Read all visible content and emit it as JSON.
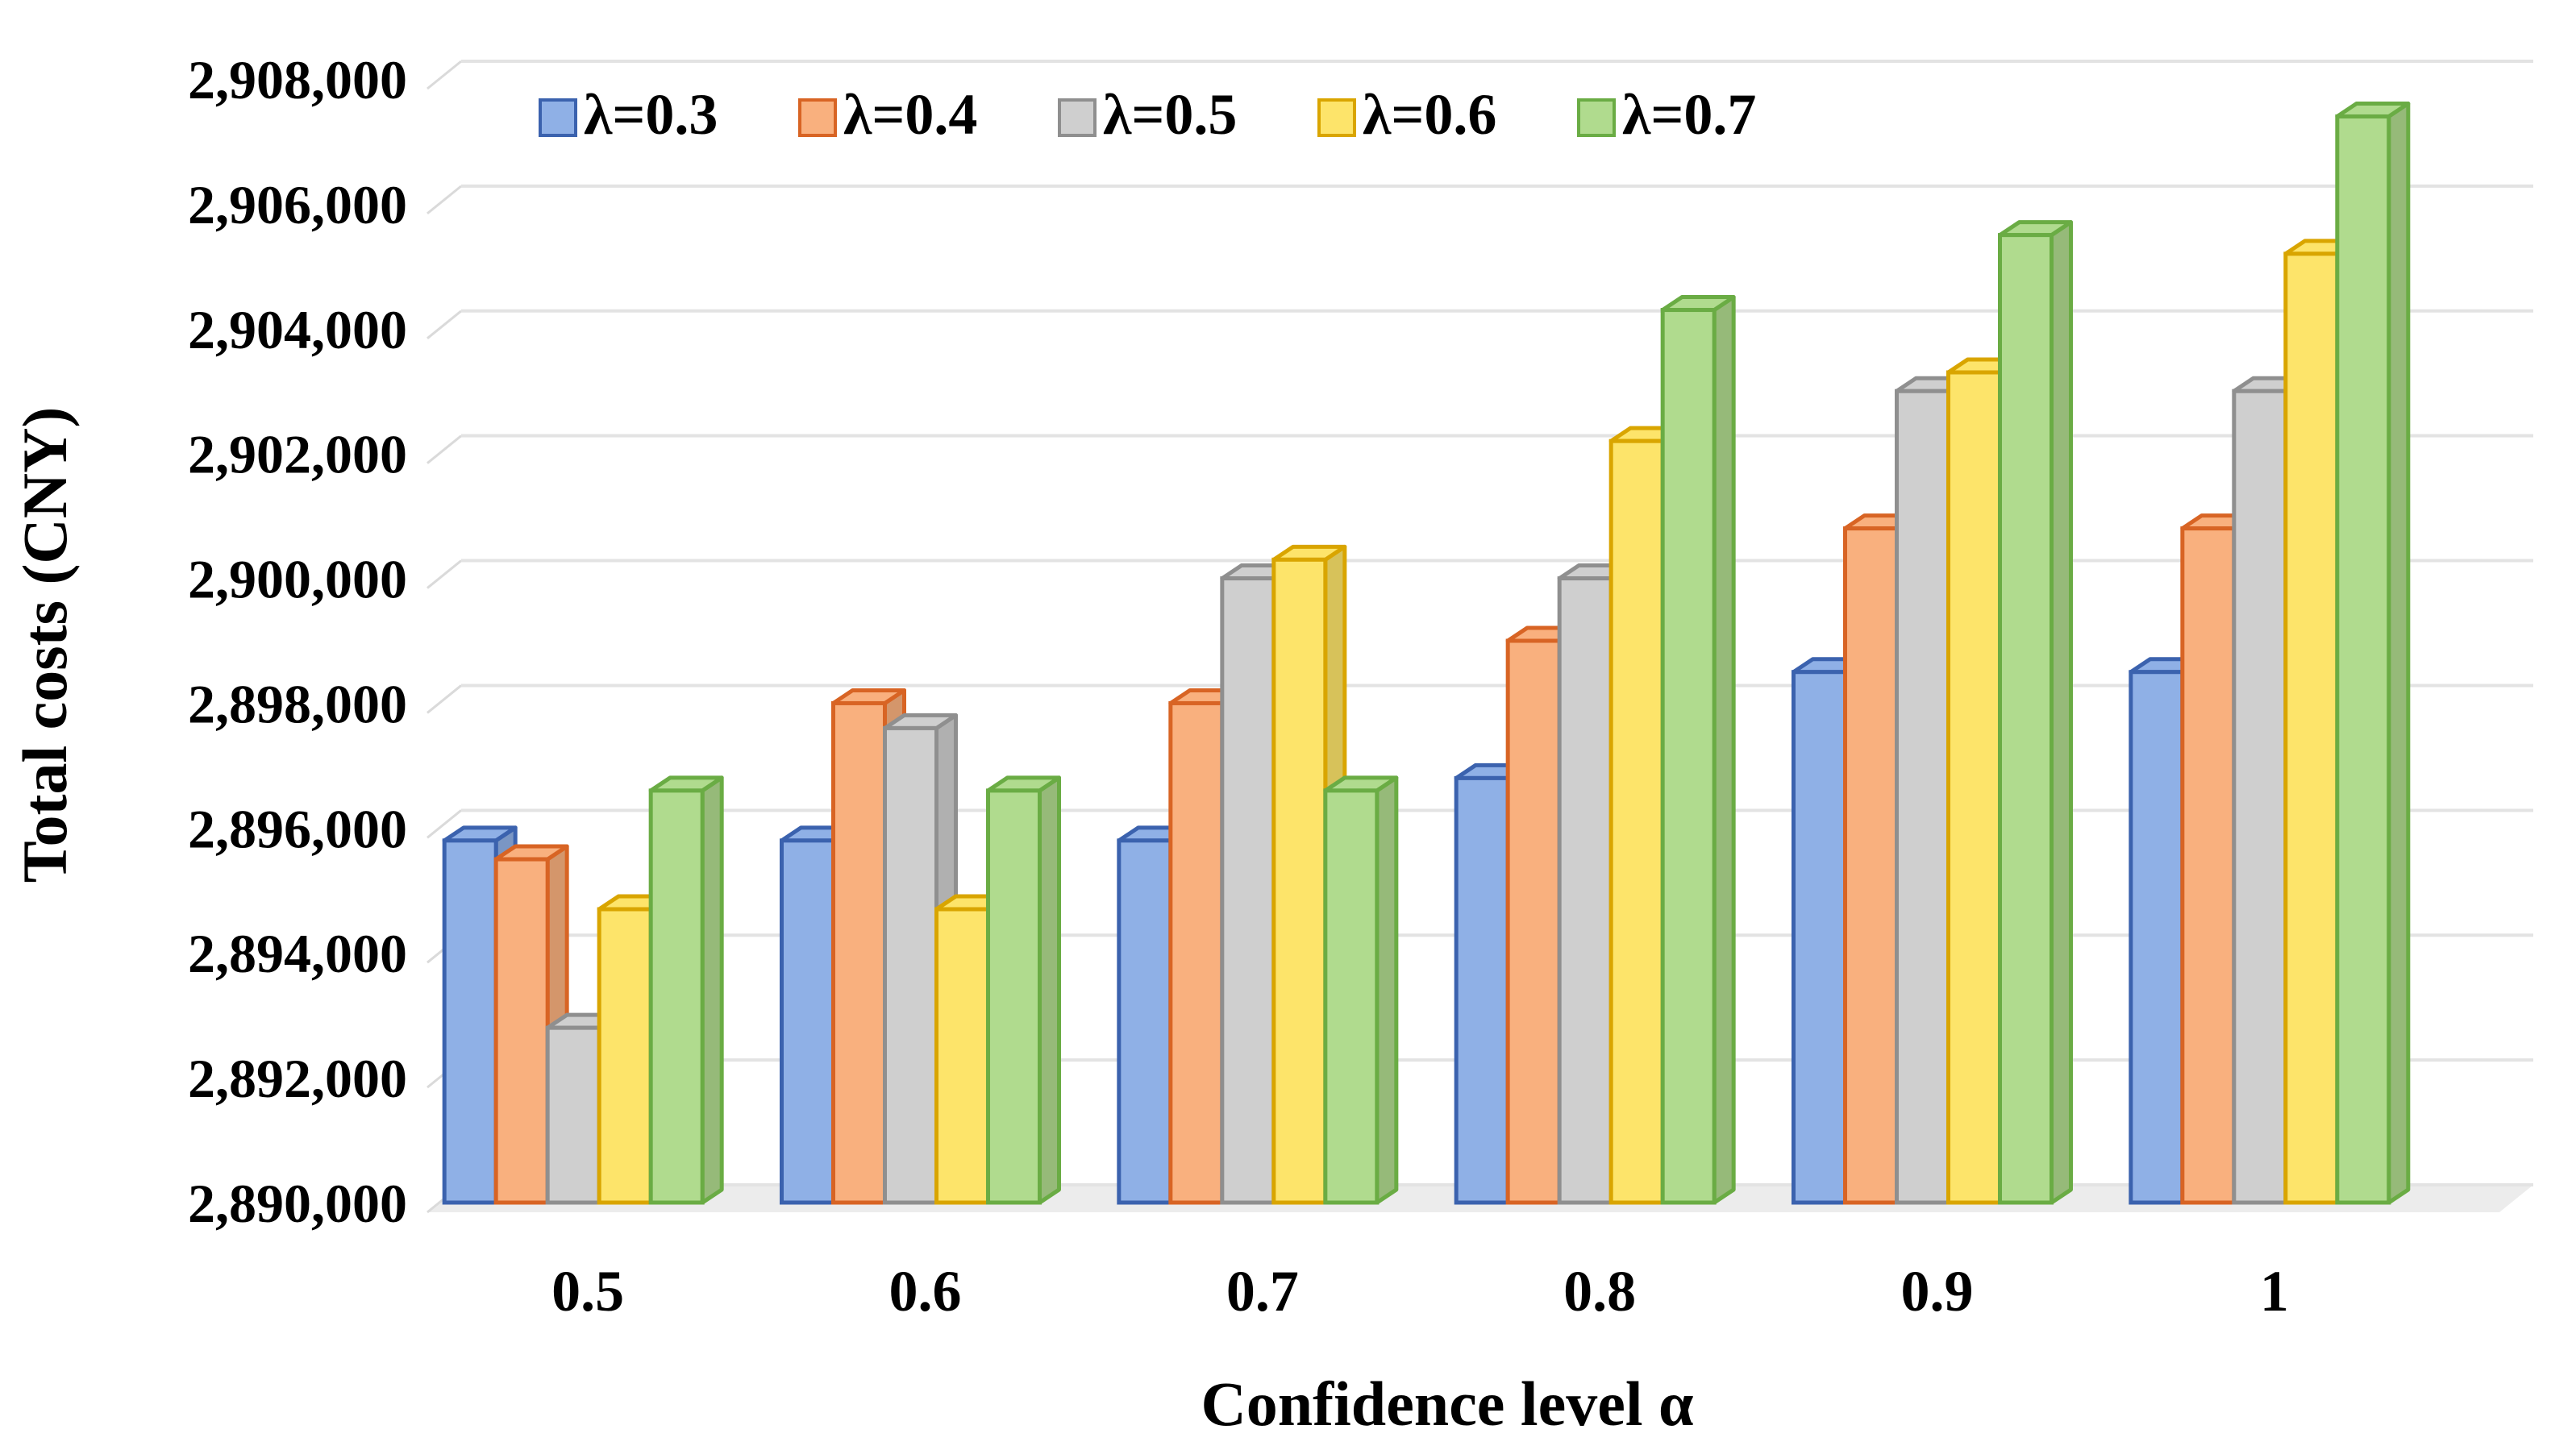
{
  "chart_data": {
    "type": "bar",
    "title": "",
    "xlabel": "Confidence level α",
    "ylabel": "Total costs (CNY)",
    "ylim": [
      2890000,
      2908000
    ],
    "yticks": [
      2890000,
      2892000,
      2894000,
      2896000,
      2898000,
      2900000,
      2902000,
      2904000,
      2906000,
      2908000
    ],
    "ytick_labels": [
      "2,890,000",
      "2,892,000",
      "2,894,000",
      "2,896,000",
      "2,898,000",
      "2,900,000",
      "2,902,000",
      "2,904,000",
      "2,906,000",
      "2,908,000"
    ],
    "grid": true,
    "legend_position": "top",
    "categories": [
      "0.5",
      "0.6",
      "0.7",
      "0.8",
      "0.9",
      "1"
    ],
    "series": [
      {
        "name": "λ=0.3",
        "color": "#8fb0e6",
        "edge": "#3b62ae",
        "values": [
          2895800,
          2895800,
          2895800,
          2896800,
          2898500,
          2898500
        ]
      },
      {
        "name": "λ=0.4",
        "color": "#f9b07e",
        "edge": "#d86424",
        "values": [
          2895500,
          2898000,
          2898000,
          2899000,
          2900800,
          2900800
        ]
      },
      {
        "name": "λ=0.5",
        "color": "#cfcfcf",
        "edge": "#8f8f8f",
        "values": [
          2892800,
          2897600,
          2900000,
          2900000,
          2903000,
          2903000
        ]
      },
      {
        "name": "λ=0.6",
        "color": "#fde46a",
        "edge": "#d9a500",
        "values": [
          2894700,
          2894700,
          2900300,
          2902200,
          2903300,
          2905200
        ]
      },
      {
        "name": "λ=0.7",
        "color": "#b0db8e",
        "edge": "#6aac44",
        "values": [
          2896600,
          2896600,
          2896600,
          2904300,
          2905500,
          2907400
        ]
      }
    ]
  }
}
